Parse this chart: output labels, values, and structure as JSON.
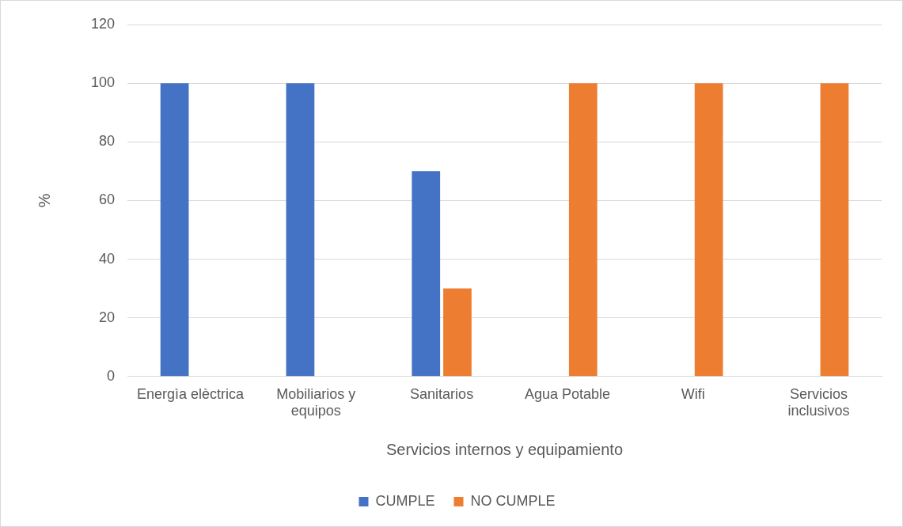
{
  "chart_data": {
    "type": "bar",
    "xlabel": "Servicios internos y equipamiento",
    "ylabel": "%",
    "categories": [
      "Energìa elèctrica",
      "Mobiliarios y equipos",
      "Sanitarios",
      "Agua Potable",
      "Wifi",
      "Servicios inclusivos"
    ],
    "series": [
      {
        "name": "CUMPLE",
        "color": "#4472c4",
        "values": [
          100,
          100,
          70,
          0,
          0,
          0
        ]
      },
      {
        "name": "NO CUMPLE",
        "color": "#ed7d31",
        "values": [
          0,
          0,
          30,
          100,
          100,
          100
        ]
      }
    ],
    "ylim": [
      0,
      120
    ],
    "yticks": [
      0,
      20,
      40,
      60,
      80,
      100,
      120
    ],
    "grid": "y",
    "legend": "bottom"
  }
}
